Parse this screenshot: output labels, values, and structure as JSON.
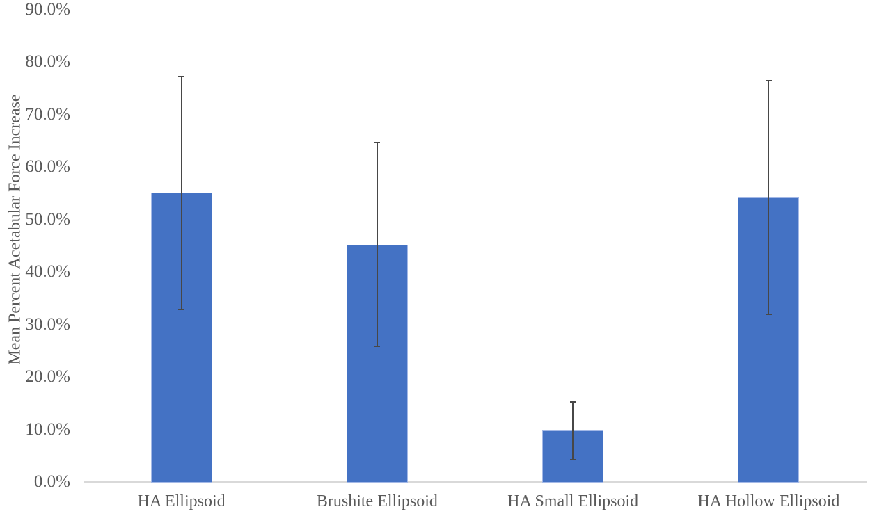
{
  "chart_data": {
    "type": "bar",
    "title": "",
    "xlabel": "",
    "ylabel": "Mean Percent Acetabular Force Increase",
    "categories": [
      "HA Ellipsoid",
      "Brushite Ellipsoid",
      "HA Small Ellipsoid",
      "HA Hollow Ellipsoid"
    ],
    "values": [
      55.1,
      45.2,
      9.8,
      54.2
    ],
    "error_bar_top": [
      77.3,
      64.7,
      15.3,
      76.5
    ],
    "error_bar_bottom": [
      32.9,
      25.8,
      4.2,
      31.9
    ],
    "y_tick_labels": [
      "0.0%",
      "10.0%",
      "20.0%",
      "30.0%",
      "40.0%",
      "50.0%",
      "60.0%",
      "70.0%",
      "80.0%",
      "90.0%"
    ],
    "y_tick_values": [
      0,
      10,
      20,
      30,
      40,
      50,
      60,
      70,
      80,
      90
    ],
    "ylim": [
      0,
      90
    ],
    "grid": false,
    "legend": "none",
    "colors": {
      "bar_fill": "#4472C4",
      "bar_border": "#A3B8E6",
      "error_bar": "#474747",
      "axis_line": "#D9D9D9",
      "text": "#595959",
      "background": "#FFFFFF"
    }
  }
}
